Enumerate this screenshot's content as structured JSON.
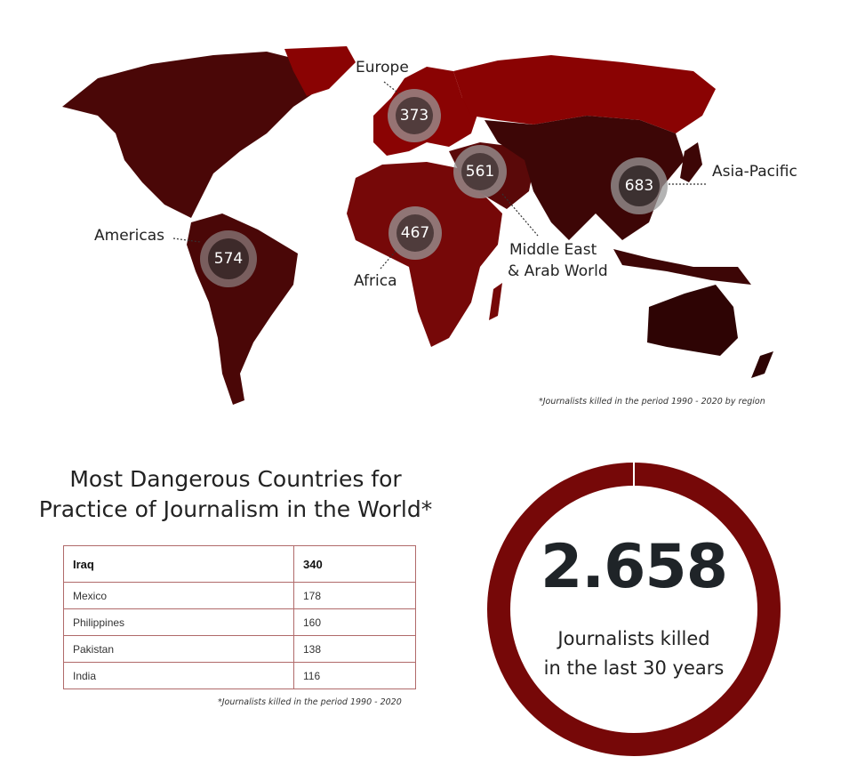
{
  "map": {
    "regions": [
      {
        "name": "Europe",
        "value": "373"
      },
      {
        "name": "Middle East & Arab World",
        "line1": "Middle East",
        "line2": "& Arab World",
        "value": "561"
      },
      {
        "name": "Asia-Pacific",
        "value": "683"
      },
      {
        "name": "Africa",
        "value": "467"
      },
      {
        "name": "Americas",
        "value": "574"
      }
    ],
    "footnote": "*Journalists killed in the period 1990 - 2020 by region",
    "colors": {
      "dark": "#3d0606",
      "mid": "#6a0b0b",
      "bright": "#8a0303",
      "bubble": "#9a9a9a"
    }
  },
  "table": {
    "title_line1": "Most Dangerous Countries for",
    "title_line2": "Practice of Journalism in the World*",
    "rows": [
      {
        "country": "Iraq",
        "count": "340"
      },
      {
        "country": "Mexico",
        "count": "178"
      },
      {
        "country": "Philippines",
        "count": "160"
      },
      {
        "country": "Pakistan",
        "count": "138"
      },
      {
        "country": "India",
        "count": "116"
      }
    ],
    "footnote": "*Journalists killed in the period 1990 - 2020"
  },
  "total": {
    "value": "2.658",
    "label_line1": "Journalists killed",
    "label_line2": "in the last 30 years",
    "ring_color": "#760808"
  }
}
